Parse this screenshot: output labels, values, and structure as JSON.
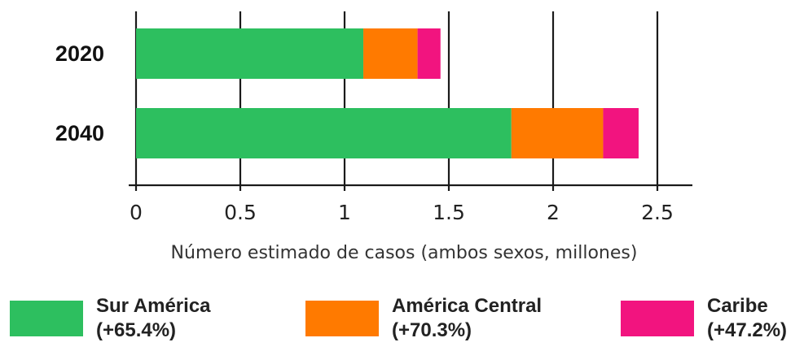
{
  "chart_data": {
    "type": "bar",
    "orientation": "horizontal",
    "stacked": true,
    "categories": [
      "2020",
      "2040"
    ],
    "series": [
      {
        "name": "Sur América",
        "change": "(+65.4%)",
        "color": "#2dbf5f",
        "values": [
          1.09,
          1.8
        ]
      },
      {
        "name": "América Central",
        "change": "(+70.3%)",
        "color": "#ff7a00",
        "values": [
          0.26,
          0.44
        ]
      },
      {
        "name": "Caribe",
        "change": "(+47.2%)",
        "color": "#f2147f",
        "values": [
          0.11,
          0.17
        ]
      }
    ],
    "title": "",
    "xlabel": "Número estimado de casos (ambos sexos, millones)",
    "ylabel": "",
    "xlim": [
      0,
      2.5
    ],
    "xticks": [
      0,
      0.5,
      1,
      1.5,
      2,
      2.5
    ],
    "xtick_labels": [
      "0",
      "0.5",
      "1",
      "1.5",
      "2",
      "2.5"
    ],
    "grid": "vertical",
    "legend": "bottom"
  }
}
